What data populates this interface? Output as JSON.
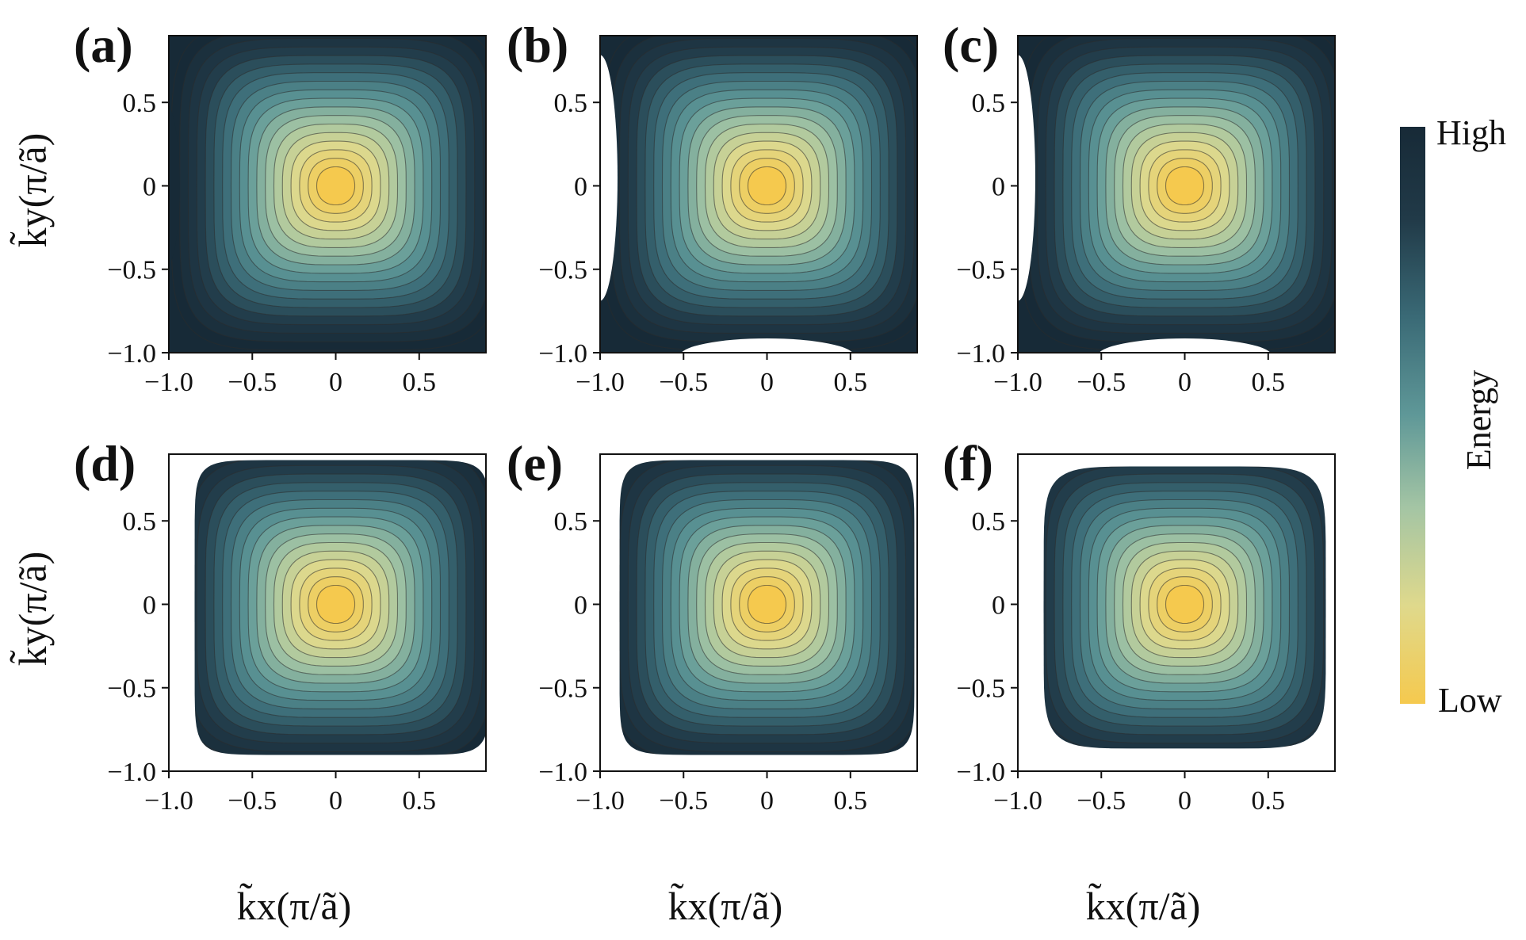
{
  "colorbar": {
    "high_label": "High",
    "low_label": "Low",
    "label": "Energy",
    "colors": [
      "#f5c94e",
      "#dfd98c",
      "#a4c5a4",
      "#5f9898",
      "#3a6a76",
      "#213a48",
      "#172a37"
    ]
  },
  "axes": {
    "xlabel": "k̃x(π/ã)",
    "ylabel": "k̃y(π/ã)"
  },
  "chart_data": [
    {
      "type": "heatmap",
      "panel": "(a)",
      "x_ticks": [
        "−1.0",
        "−0.5",
        "0",
        "0.5"
      ],
      "y_ticks": [
        "0.5",
        "0",
        "−0.5",
        "−1.0"
      ],
      "xlim": [
        -1.0,
        0.9
      ],
      "ylim": [
        -1.0,
        0.9
      ],
      "energy_minimum": [
        0,
        0
      ],
      "contour_levels": 18,
      "masked_region": "none"
    },
    {
      "type": "heatmap",
      "panel": "(b)",
      "x_ticks": [
        "−1.0",
        "−0.5",
        "0",
        "0.5"
      ],
      "y_ticks": [
        "0.5",
        "0",
        "−0.5",
        "−1.0"
      ],
      "xlim": [
        -1.0,
        0.9
      ],
      "ylim": [
        -1.0,
        0.9
      ],
      "energy_minimum": [
        0,
        0
      ],
      "contour_levels": 18,
      "masked_region": "left and bottom edges"
    },
    {
      "type": "heatmap",
      "panel": "(c)",
      "x_ticks": [
        "−1.0",
        "−0.5",
        "0",
        "0.5"
      ],
      "y_ticks": [
        "0.5",
        "0",
        "−0.5",
        "−1.0"
      ],
      "xlim": [
        -1.0,
        0.9
      ],
      "ylim": [
        -1.0,
        0.9
      ],
      "energy_minimum": [
        0,
        0
      ],
      "contour_levels": 18,
      "masked_region": "left and bottom edges"
    },
    {
      "type": "heatmap",
      "panel": "(d)",
      "x_ticks": [
        "−1.0",
        "−0.5",
        "0",
        "0.5"
      ],
      "y_ticks": [
        "0.5",
        "0",
        "−0.5",
        "−1.0"
      ],
      "xlim": [
        -1.0,
        0.9
      ],
      "ylim": [
        -1.0,
        0.9
      ],
      "energy_minimum": [
        0,
        0
      ],
      "contour_levels": 18,
      "masked_region": "outer border"
    },
    {
      "type": "heatmap",
      "panel": "(e)",
      "x_ticks": [
        "−1.0",
        "−0.5",
        "0",
        "0.5"
      ],
      "y_ticks": [
        "0.5",
        "0",
        "−0.5",
        "−1.0"
      ],
      "xlim": [
        -1.0,
        0.9
      ],
      "ylim": [
        -1.0,
        0.9
      ],
      "energy_minimum": [
        0,
        0
      ],
      "contour_levels": 18,
      "masked_region": "outer border"
    },
    {
      "type": "heatmap",
      "panel": "(f)",
      "x_ticks": [
        "−1.0",
        "−0.5",
        "0",
        "0.5"
      ],
      "y_ticks": [
        "0.5",
        "0",
        "−0.5",
        "−1.0"
      ],
      "xlim": [
        -1.0,
        0.9
      ],
      "ylim": [
        -1.0,
        0.9
      ],
      "energy_minimum": [
        0,
        0
      ],
      "contour_levels": 18,
      "masked_region": "outer border"
    }
  ]
}
